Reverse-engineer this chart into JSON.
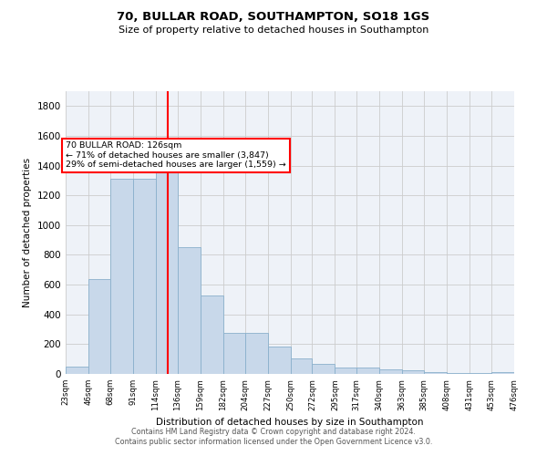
{
  "title": "70, BULLAR ROAD, SOUTHAMPTON, SO18 1GS",
  "subtitle": "Size of property relative to detached houses in Southampton",
  "xlabel": "Distribution of detached houses by size in Southampton",
  "ylabel": "Number of detached properties",
  "bar_color": "#c8d8ea",
  "bar_edge_color": "#8ab0cc",
  "grid_color": "#cccccc",
  "background_color": "#eef2f8",
  "red_line_x": 126,
  "annotation_title": "70 BULLAR ROAD: 126sqm",
  "annotation_line1": "← 71% of detached houses are smaller (3,847)",
  "annotation_line2": "29% of semi-detached houses are larger (1,559) →",
  "footer_line1": "Contains HM Land Registry data © Crown copyright and database right 2024.",
  "footer_line2": "Contains public sector information licensed under the Open Government Licence v3.0.",
  "bin_edges": [
    23,
    46,
    68,
    91,
    114,
    136,
    159,
    182,
    204,
    227,
    250,
    272,
    295,
    317,
    340,
    363,
    385,
    408,
    431,
    453,
    476
  ],
  "bin_values": [
    50,
    640,
    1310,
    1310,
    1375,
    850,
    530,
    275,
    275,
    185,
    105,
    65,
    40,
    40,
    30,
    22,
    14,
    7,
    7,
    15
  ],
  "ylim": [
    0,
    1900
  ],
  "yticks": [
    0,
    200,
    400,
    600,
    800,
    1000,
    1200,
    1400,
    1600,
    1800
  ]
}
